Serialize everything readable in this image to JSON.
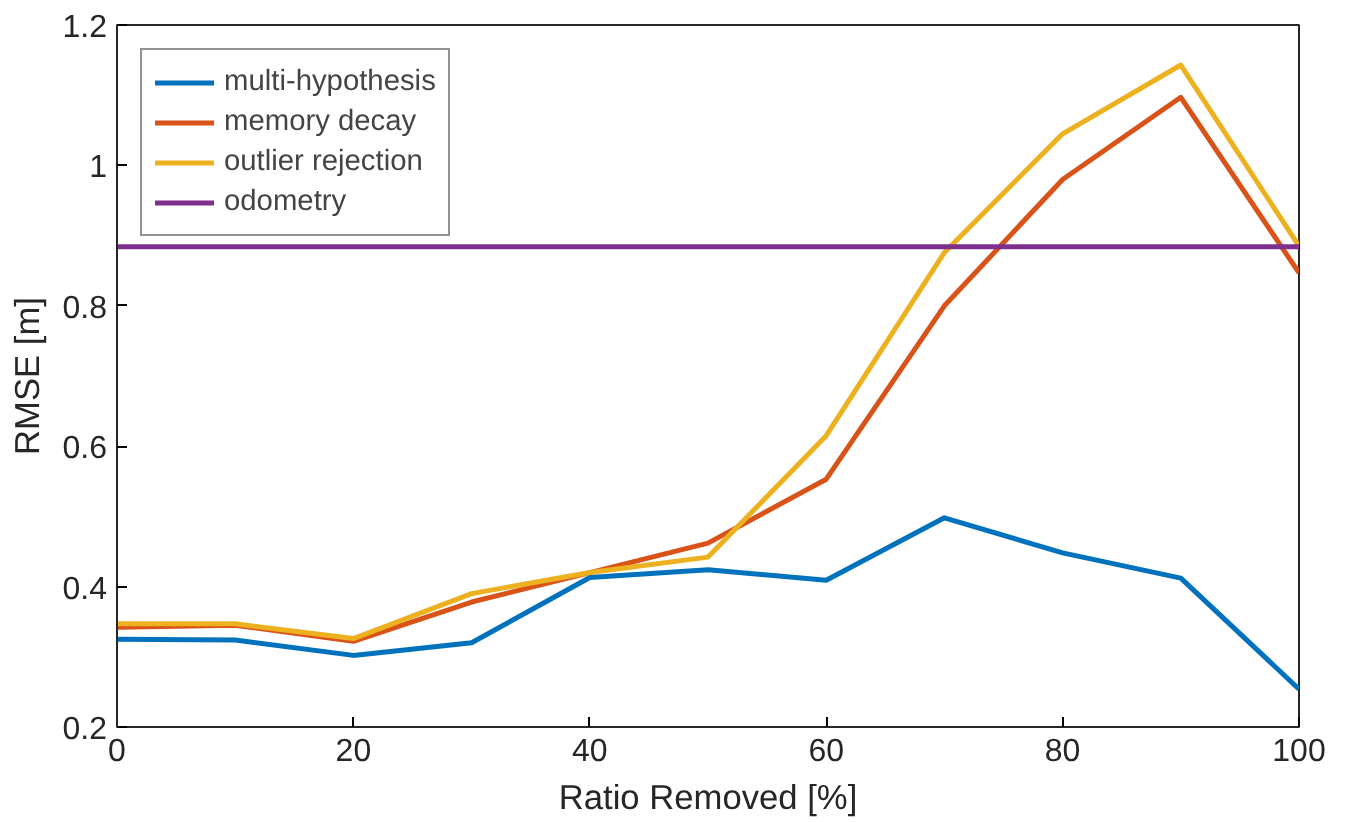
{
  "chart_data": {
    "type": "line",
    "xlabel": "Ratio Removed [%]",
    "ylabel": "RMSE [m]",
    "x": [
      0,
      10,
      20,
      30,
      40,
      50,
      60,
      70,
      80,
      90,
      100
    ],
    "xlim": [
      0,
      100
    ],
    "xticks": [
      0,
      20,
      40,
      60,
      80,
      100
    ],
    "ylim": [
      0.2,
      1.2
    ],
    "yticks": [
      {
        "value": 0.2,
        "label": "0.2"
      },
      {
        "value": 0.4,
        "label": "0.4"
      },
      {
        "value": 0.6,
        "label": "0.6"
      },
      {
        "value": 0.8,
        "label": "0.8"
      },
      {
        "value": 1,
        "label": "1"
      },
      {
        "value": 1.2,
        "label": "1.2"
      }
    ],
    "grid": false,
    "legend": "top left",
    "line_style": "solid",
    "marker": "none",
    "series": [
      {
        "name": "multi-hypothesis",
        "color": "#0072bd",
        "values": [
          0.325,
          0.324,
          0.302,
          0.32,
          0.413,
          0.424,
          0.409,
          0.498,
          0.448,
          0.412,
          0.254
        ]
      },
      {
        "name": "memory decay",
        "color": "#d95319",
        "values": [
          0.342,
          0.345,
          0.322,
          0.378,
          0.42,
          0.462,
          0.553,
          0.8,
          0.98,
          1.097,
          0.847
        ]
      },
      {
        "name": "outlier rejection",
        "color": "#edb120",
        "values": [
          0.347,
          0.347,
          0.326,
          0.39,
          0.42,
          0.442,
          0.615,
          0.876,
          1.045,
          1.143,
          0.885
        ]
      },
      {
        "name": "odometry",
        "color": "#7e2f8e",
        "values": [
          0.884,
          0.884,
          0.884,
          0.884,
          0.884,
          0.884,
          0.884,
          0.884,
          0.884,
          0.884,
          0.884
        ]
      }
    ]
  }
}
